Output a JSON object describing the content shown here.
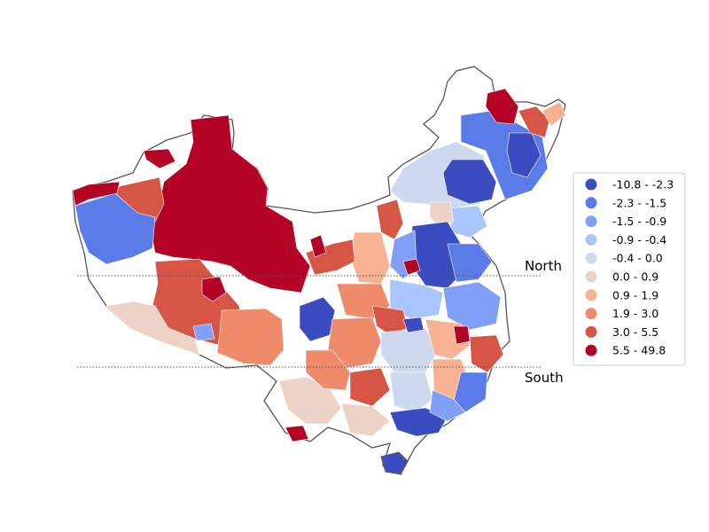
{
  "map": {
    "north_label": "North",
    "south_label": "South",
    "outline_color": "#555555",
    "divider_color": "#555555",
    "legend": {
      "entries": [
        {
          "label": "-10.8 - -2.3",
          "color": "#3a4cc0"
        },
        {
          "label": "-2.3 - -1.5",
          "color": "#5b7be8"
        },
        {
          "label": "-1.5 - -0.9",
          "color": "#80a0f8"
        },
        {
          "label": "-0.9 - -0.4",
          "color": "#aac6fd"
        },
        {
          "label": "-0.4 - 0.0",
          "color": "#ccd9ee"
        },
        {
          "label": "0.0 - 0.9",
          "color": "#ecd3c5"
        },
        {
          "label": "0.9 - 1.9",
          "color": "#f6b293"
        },
        {
          "label": "1.9 - 3.0",
          "color": "#ef8a6a"
        },
        {
          "label": "3.0 - 5.5",
          "color": "#d75545"
        },
        {
          "label": "5.5 - 49.8",
          "color": "#b40426"
        }
      ]
    }
  }
}
